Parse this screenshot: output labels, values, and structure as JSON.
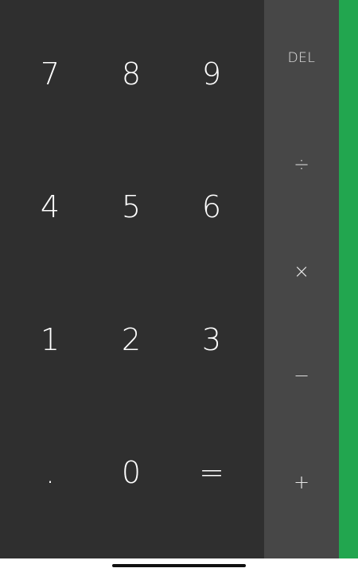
{
  "numpad": {
    "rows": [
      [
        "7",
        "8",
        "9"
      ],
      [
        "4",
        "5",
        "6"
      ],
      [
        "1",
        "2",
        "3"
      ],
      [
        ".",
        "0",
        "="
      ]
    ]
  },
  "operators": {
    "delete": "DEL",
    "divide": "÷",
    "multiply": "×",
    "subtract": "−",
    "add": "+"
  },
  "colors": {
    "numpad_bg": "#2f2f2f",
    "operator_bg": "#474747",
    "advanced_panel_accent": "#22a64f"
  }
}
